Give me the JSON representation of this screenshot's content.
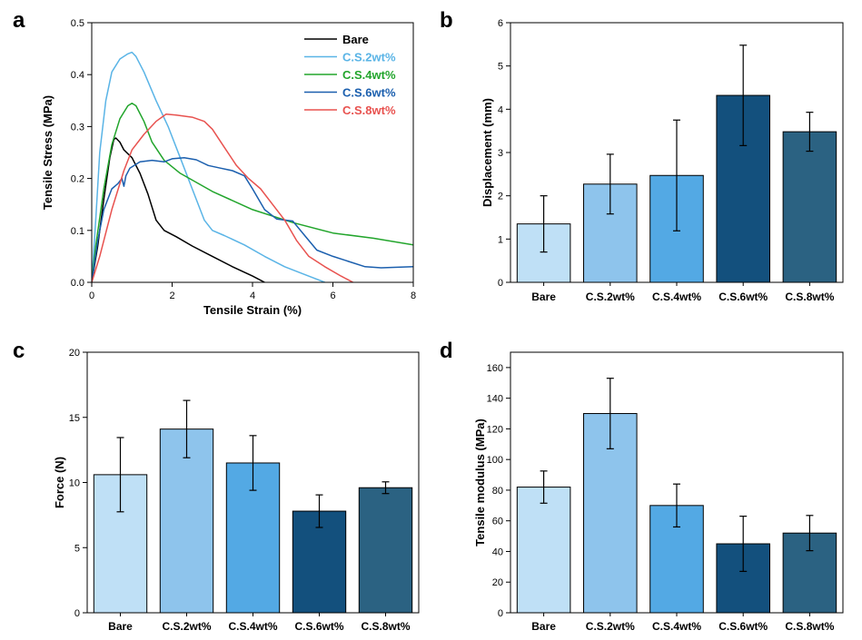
{
  "chart_data": [
    {
      "id": "a",
      "panel_label": "a",
      "type": "line",
      "xlabel": "Tensile Strain (%)",
      "ylabel": "Tensile Stress (MPa)",
      "xlim": [
        0,
        8
      ],
      "ylim": [
        0,
        0.5
      ],
      "xticks": [
        0,
        2,
        4,
        6,
        8
      ],
      "yticks": [
        0.0,
        0.1,
        0.2,
        0.3,
        0.4,
        0.5
      ],
      "ytick_labels": [
        "0.0",
        "0.1",
        "0.2",
        "0.3",
        "0.4",
        "0.5"
      ],
      "legend_position": "top-right",
      "series": [
        {
          "name": "Bare",
          "color": "#000000",
          "points": [
            [
              0,
              0
            ],
            [
              0.15,
              0.07
            ],
            [
              0.3,
              0.16
            ],
            [
              0.45,
              0.24
            ],
            [
              0.55,
              0.275
            ],
            [
              0.6,
              0.278
            ],
            [
              0.7,
              0.27
            ],
            [
              0.8,
              0.255
            ],
            [
              1.0,
              0.24
            ],
            [
              1.2,
              0.21
            ],
            [
              1.4,
              0.17
            ],
            [
              1.6,
              0.12
            ],
            [
              1.8,
              0.1
            ],
            [
              2.1,
              0.088
            ],
            [
              2.5,
              0.07
            ],
            [
              3.0,
              0.05
            ],
            [
              3.5,
              0.03
            ],
            [
              4.0,
              0.012
            ],
            [
              4.3,
              0.0
            ]
          ]
        },
        {
          "name": "C.S.2wt%",
          "color": "#5ab4e6",
          "points": [
            [
              0,
              0
            ],
            [
              0.1,
              0.12
            ],
            [
              0.2,
              0.25
            ],
            [
              0.35,
              0.35
            ],
            [
              0.5,
              0.405
            ],
            [
              0.7,
              0.43
            ],
            [
              0.9,
              0.44
            ],
            [
              1.0,
              0.443
            ],
            [
              1.1,
              0.435
            ],
            [
              1.3,
              0.405
            ],
            [
              1.6,
              0.35
            ],
            [
              1.9,
              0.3
            ],
            [
              2.2,
              0.24
            ],
            [
              2.5,
              0.18
            ],
            [
              2.8,
              0.12
            ],
            [
              3.0,
              0.1
            ],
            [
              3.3,
              0.09
            ],
            [
              3.8,
              0.072
            ],
            [
              4.3,
              0.05
            ],
            [
              4.8,
              0.03
            ],
            [
              5.3,
              0.015
            ],
            [
              5.8,
              0.0
            ]
          ]
        },
        {
          "name": "C.S.4wt%",
          "color": "#22a52c",
          "points": [
            [
              0,
              0
            ],
            [
              0.1,
              0.07
            ],
            [
              0.3,
              0.18
            ],
            [
              0.5,
              0.265
            ],
            [
              0.7,
              0.315
            ],
            [
              0.9,
              0.34
            ],
            [
              1.0,
              0.345
            ],
            [
              1.1,
              0.34
            ],
            [
              1.3,
              0.31
            ],
            [
              1.5,
              0.27
            ],
            [
              1.8,
              0.235
            ],
            [
              2.2,
              0.21
            ],
            [
              3.0,
              0.175
            ],
            [
              4.0,
              0.14
            ],
            [
              5.0,
              0.115
            ],
            [
              6.0,
              0.095
            ],
            [
              7.0,
              0.085
            ],
            [
              8.0,
              0.072
            ]
          ]
        },
        {
          "name": "C.S.6wt%",
          "color": "#1b5fae",
          "points": [
            [
              0,
              0
            ],
            [
              0.15,
              0.08
            ],
            [
              0.3,
              0.14
            ],
            [
              0.5,
              0.18
            ],
            [
              0.65,
              0.19
            ],
            [
              0.75,
              0.2
            ],
            [
              0.8,
              0.185
            ],
            [
              0.85,
              0.205
            ],
            [
              0.95,
              0.22
            ],
            [
              1.2,
              0.232
            ],
            [
              1.5,
              0.235
            ],
            [
              1.8,
              0.232
            ],
            [
              2.0,
              0.238
            ],
            [
              2.3,
              0.24
            ],
            [
              2.6,
              0.236
            ],
            [
              2.9,
              0.225
            ],
            [
              3.2,
              0.22
            ],
            [
              3.5,
              0.215
            ],
            [
              3.8,
              0.205
            ],
            [
              4.0,
              0.18
            ],
            [
              4.3,
              0.14
            ],
            [
              4.6,
              0.122
            ],
            [
              5.0,
              0.118
            ],
            [
              5.3,
              0.09
            ],
            [
              5.6,
              0.062
            ],
            [
              6.0,
              0.05
            ],
            [
              6.4,
              0.04
            ],
            [
              6.8,
              0.03
            ],
            [
              7.2,
              0.028
            ],
            [
              8.0,
              0.03
            ]
          ]
        },
        {
          "name": "C.S.8wt%",
          "color": "#e8524f",
          "points": [
            [
              0,
              0
            ],
            [
              0.2,
              0.05
            ],
            [
              0.5,
              0.14
            ],
            [
              0.8,
              0.215
            ],
            [
              1.0,
              0.255
            ],
            [
              1.3,
              0.285
            ],
            [
              1.6,
              0.31
            ],
            [
              1.85,
              0.324
            ],
            [
              2.1,
              0.322
            ],
            [
              2.5,
              0.318
            ],
            [
              2.8,
              0.31
            ],
            [
              3.0,
              0.295
            ],
            [
              3.3,
              0.26
            ],
            [
              3.6,
              0.225
            ],
            [
              3.9,
              0.2
            ],
            [
              4.2,
              0.18
            ],
            [
              4.5,
              0.15
            ],
            [
              4.8,
              0.12
            ],
            [
              5.1,
              0.08
            ],
            [
              5.4,
              0.05
            ],
            [
              5.8,
              0.03
            ],
            [
              6.2,
              0.012
            ],
            [
              6.5,
              0.0
            ]
          ]
        }
      ]
    },
    {
      "id": "b",
      "panel_label": "b",
      "type": "bar",
      "ylabel": "Displacement (mm)",
      "categories": [
        "Bare",
        "C.S.2wt%",
        "C.S.4wt%",
        "C.S.6wt%",
        "C.S.8wt%"
      ],
      "values": [
        1.35,
        2.27,
        2.47,
        4.32,
        3.48
      ],
      "errors": [
        0.65,
        0.69,
        1.28,
        1.16,
        0.45
      ],
      "colors": [
        "#bfe0f6",
        "#8ec4ec",
        "#53a9e4",
        "#13507d",
        "#2b6282"
      ],
      "ylim": [
        0,
        6
      ],
      "yticks": [
        0,
        1,
        2,
        3,
        4,
        5,
        6
      ],
      "ytick_labels": [
        "0",
        "1",
        "2",
        "3",
        "4",
        "5",
        "6"
      ]
    },
    {
      "id": "c",
      "panel_label": "c",
      "type": "bar",
      "ylabel": "Force (N)",
      "categories": [
        "Bare",
        "C.S.2wt%",
        "C.S.4wt%",
        "C.S.6wt%",
        "C.S.8wt%"
      ],
      "values": [
        10.6,
        14.1,
        11.5,
        7.8,
        9.6
      ],
      "errors": [
        2.85,
        2.2,
        2.1,
        1.25,
        0.45
      ],
      "colors": [
        "#bfe0f6",
        "#8ec4ec",
        "#53a9e4",
        "#13507d",
        "#2b6282"
      ],
      "ylim": [
        0,
        20
      ],
      "yticks": [
        0,
        5,
        10,
        15,
        20
      ],
      "ytick_labels": [
        "0",
        "5",
        "10",
        "15",
        "20"
      ]
    },
    {
      "id": "d",
      "panel_label": "d",
      "type": "bar",
      "ylabel": "Tensile modulus (MPa)",
      "categories": [
        "Bare",
        "C.S.2wt%",
        "C.S.4wt%",
        "C.S.6wt%",
        "C.S.8wt%"
      ],
      "values": [
        82,
        130,
        70,
        45,
        52
      ],
      "errors": [
        10.5,
        23,
        14,
        18,
        11.5
      ],
      "colors": [
        "#bfe0f6",
        "#8ec4ec",
        "#53a9e4",
        "#13507d",
        "#2b6282"
      ],
      "ylim": [
        0,
        170
      ],
      "yticks": [
        0,
        20,
        40,
        60,
        80,
        100,
        120,
        140,
        160
      ],
      "ytick_labels": [
        "0",
        "20",
        "40",
        "60",
        "80",
        "100",
        "120",
        "140",
        "160"
      ]
    }
  ]
}
